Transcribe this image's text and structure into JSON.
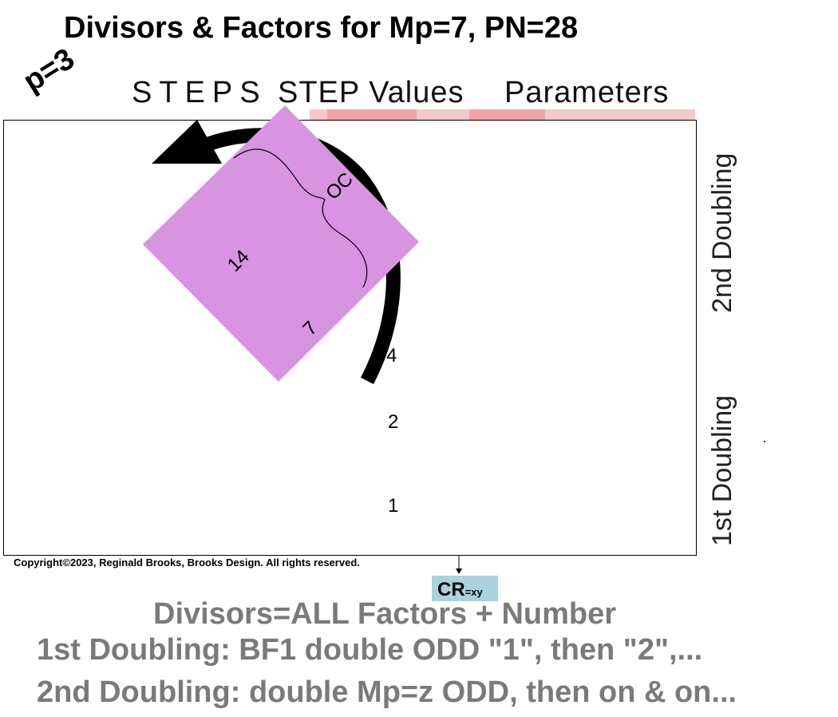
{
  "title": "Divisors & Factors for Mp=7, PN=28",
  "p_label": "p=3",
  "headers": {
    "steps": "STEPS",
    "step_values": "STEP Values",
    "parameters": "Parameters"
  },
  "diagram": {
    "arc_label": "OC",
    "diamond_labels": {
      "a": "14",
      "b": "7"
    },
    "numbers": {
      "n4": "4",
      "n2": "2",
      "n1": "1"
    },
    "side_labels": {
      "second": "2nd Doubling",
      "first": "1st Doubling"
    },
    "colors": {
      "diamond": "#d893e1",
      "pink_bar": "#f4c9cb",
      "pink_cell": "#f2a3a6",
      "cr_box": "#a9d3dd"
    }
  },
  "copyright": "Copyright©2023, Reginald Brooks, Brooks Design. All rights reserved.",
  "cr": {
    "main": "CR",
    "sub": "=xy"
  },
  "notes": {
    "line1": "Divisors=ALL Factors + Number",
    "line2": "1st Doubling: BF1 double ODD \"1\", then \"2\",...",
    "line3": "2nd Doubling: double Mp=z ODD, then on & on..."
  }
}
